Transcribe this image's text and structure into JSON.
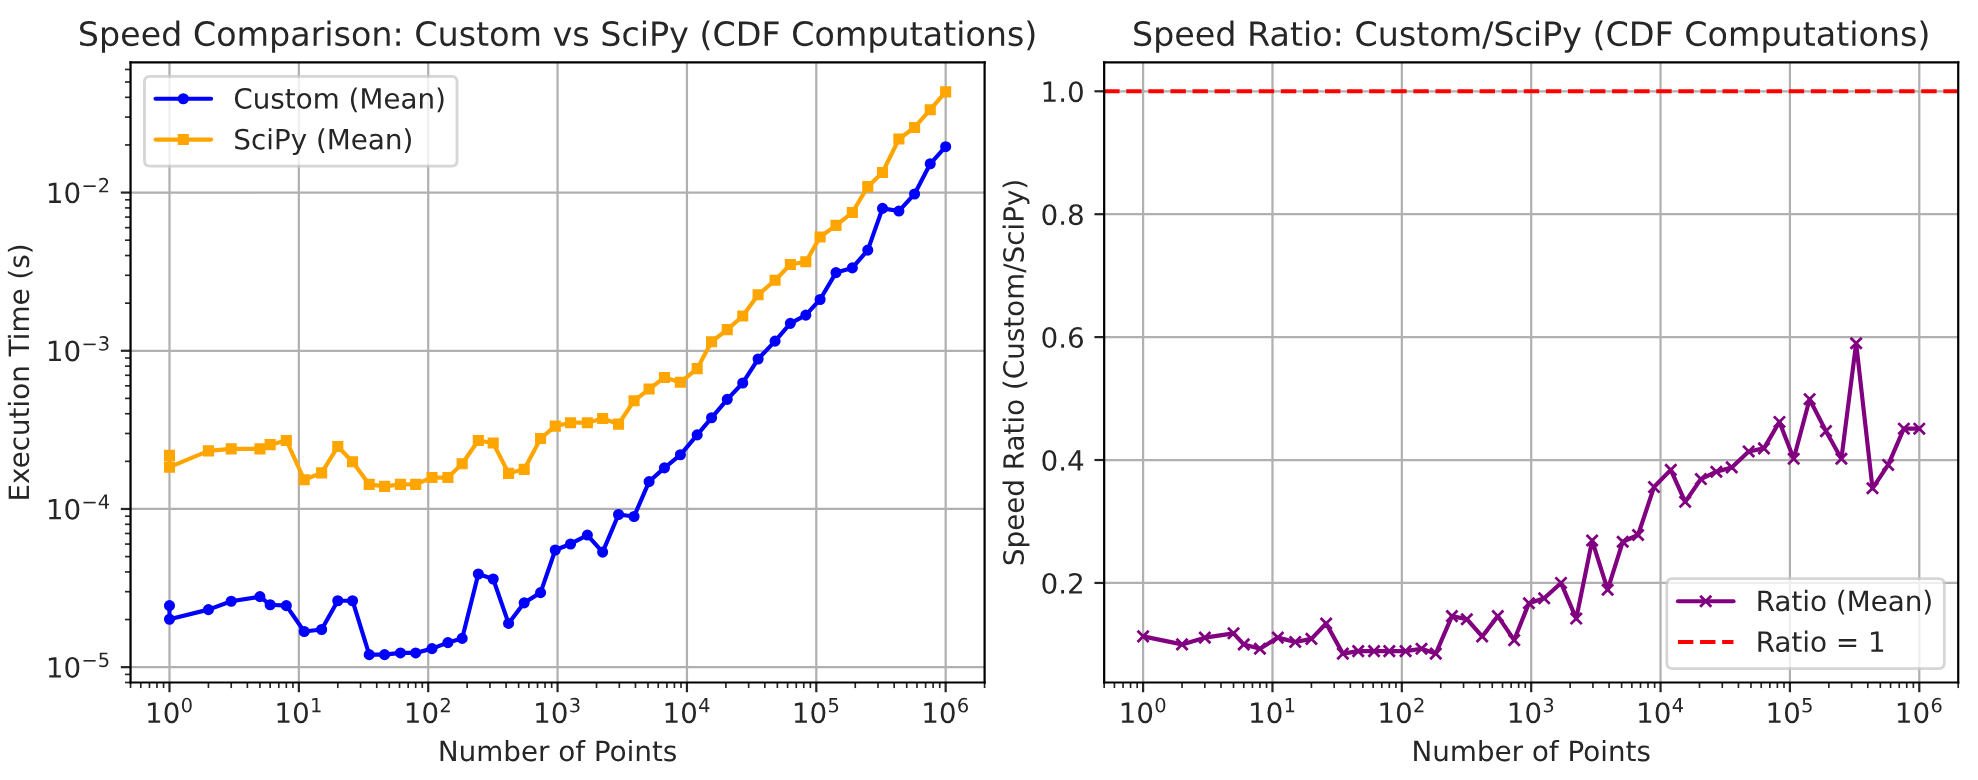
{
  "chart_data": [
    {
      "type": "line",
      "title": "Speed Comparison: Custom vs SciPy (CDF Computations)",
      "xlabel": "Number of Points",
      "ylabel": "Execution Time (s)",
      "log": "xy",
      "grid": true,
      "legend": "top left",
      "x": [
        1,
        1,
        2,
        3,
        5,
        6,
        8,
        11,
        15,
        20,
        26,
        35,
        46,
        61,
        80,
        107,
        142,
        183,
        244,
        318,
        418,
        552,
        739,
        960,
        1260,
        1700,
        2230,
        2960,
        3900,
        5100,
        6700,
        8900,
        12000,
        15500,
        20500,
        27000,
        35500,
        48000,
        63000,
        83000,
        107000,
        142000,
        190000,
        250000,
        325000,
        435000,
        575000,
        760000,
        1000000
      ],
      "xlim": [
        0.5,
        2000000
      ],
      "ylim": [
        8e-06,
        0.0665
      ],
      "xticks": [
        {
          "value": 1,
          "label": "10$^{0}$"
        },
        {
          "value": 10,
          "label": "10$^{1}$"
        },
        {
          "value": 100,
          "label": "10$^{2}$"
        },
        {
          "value": 1000,
          "label": "10$^{3}$"
        },
        {
          "value": 10000,
          "label": "10$^{4}$"
        },
        {
          "value": 100000,
          "label": "10$^{5}$"
        },
        {
          "value": 1000000,
          "label": "10$^{6}$"
        }
      ],
      "yticks": [
        {
          "value": 1e-05,
          "label": "10$^{−5}$"
        },
        {
          "value": 0.0001,
          "label": "10$^{−4}$"
        },
        {
          "value": 0.001,
          "label": "10$^{−3}$"
        },
        {
          "value": 0.01,
          "label": "10$^{−2}$"
        }
      ],
      "series": [
        {
          "name": "Custom (Mean)",
          "color": "#0000ff",
          "marker": "circle",
          "values": [
            2.45e-05,
            2.01e-05,
            2.31e-05,
            2.61e-05,
            2.79e-05,
            2.48e-05,
            2.45e-05,
            1.68e-05,
            1.73e-05,
            2.63e-05,
            2.63e-05,
            1.2e-05,
            1.2e-05,
            1.23e-05,
            1.23e-05,
            1.31e-05,
            1.43e-05,
            1.52e-05,
            3.88e-05,
            3.61e-05,
            1.89e-05,
            2.55e-05,
            2.96e-05,
            5.5e-05,
            6.01e-05,
            6.84e-05,
            5.34e-05,
            9.23e-05,
            8.96e-05,
            0.000149,
            0.000182,
            0.00022,
            0.000294,
            0.000377,
            0.000493,
            0.000626,
            0.000887,
            0.00115,
            0.00149,
            0.00168,
            0.00211,
            0.00312,
            0.00334,
            0.00433,
            0.00794,
            0.00764,
            0.0098,
            0.0152,
            0.0195
          ]
        },
        {
          "name": "SciPy (Mean)",
          "color": "#ffa500",
          "marker": "square",
          "values": [
            0.000218,
            0.000184,
            0.000233,
            0.00024,
            0.00024,
            0.000255,
            0.000271,
            0.000153,
            0.000169,
            0.000248,
            0.000199,
            0.000143,
            0.000139,
            0.000143,
            0.000143,
            0.000158,
            0.000158,
            0.000193,
            0.000271,
            0.000261,
            0.000168,
            0.000178,
            0.000279,
            0.000334,
            0.000351,
            0.000351,
            0.000373,
            0.000344,
            0.000483,
            0.000573,
            0.000678,
            0.000632,
            0.000771,
            0.00114,
            0.00136,
            0.00166,
            0.00226,
            0.00279,
            0.00351,
            0.00365,
            0.00524,
            0.0062,
            0.00748,
            0.0109,
            0.0134,
            0.0218,
            0.0258,
            0.0334,
            0.0433
          ]
        }
      ]
    },
    {
      "type": "line",
      "title": "Speed Ratio: Custom/SciPy (CDF Computations)",
      "xlabel": "Number of Points",
      "ylabel": "Speed Ratio (Custom/SciPy)",
      "log": "x",
      "grid": true,
      "legend": "bottom right",
      "x": [
        1,
        2,
        3,
        5,
        6,
        8,
        11,
        15,
        20,
        26,
        35,
        46,
        61,
        80,
        107,
        142,
        183,
        244,
        318,
        418,
        552,
        739,
        960,
        1260,
        1700,
        2230,
        2960,
        3900,
        5100,
        6700,
        8900,
        12000,
        15500,
        20500,
        27000,
        35500,
        48000,
        63000,
        83000,
        107000,
        142000,
        190000,
        250000,
        325000,
        435000,
        575000,
        760000,
        1000000
      ],
      "xlim": [
        0.5,
        2000000
      ],
      "ylim": [
        0.038,
        1.047
      ],
      "xticks": [
        {
          "value": 1,
          "label": "10$^{0}$"
        },
        {
          "value": 10,
          "label": "10$^{1}$"
        },
        {
          "value": 100,
          "label": "10$^{2}$"
        },
        {
          "value": 1000,
          "label": "10$^{3}$"
        },
        {
          "value": 10000,
          "label": "10$^{4}$"
        },
        {
          "value": 100000,
          "label": "10$^{5}$"
        },
        {
          "value": 1000000,
          "label": "10$^{6}$"
        }
      ],
      "yticks": [
        {
          "value": 0.2,
          "label": "0.2"
        },
        {
          "value": 0.4,
          "label": "0.4"
        },
        {
          "value": 0.6,
          "label": "0.6"
        },
        {
          "value": 0.8,
          "label": "0.8"
        },
        {
          "value": 1.0,
          "label": "1.0"
        }
      ],
      "series": [
        {
          "name": "Ratio (Mean)",
          "color": "#800080",
          "marker": "cross",
          "values": [
            0.113,
            0.1,
            0.111,
            0.118,
            0.1,
            0.093,
            0.111,
            0.104,
            0.109,
            0.134,
            0.085,
            0.089,
            0.089,
            0.089,
            0.089,
            0.093,
            0.085,
            0.146,
            0.141,
            0.113,
            0.146,
            0.107,
            0.167,
            0.175,
            0.2,
            0.142,
            0.269,
            0.189,
            0.267,
            0.278,
            0.356,
            0.384,
            0.332,
            0.369,
            0.381,
            0.388,
            0.414,
            0.419,
            0.462,
            0.402,
            0.499,
            0.447,
            0.402,
            0.59,
            0.354,
            0.392,
            0.451,
            0.451
          ]
        }
      ],
      "ref_lines": [
        {
          "axis": "y",
          "value": 1.0,
          "label": "Ratio = 1",
          "color": "#ff0000",
          "line_style": "dashed"
        }
      ]
    }
  ]
}
